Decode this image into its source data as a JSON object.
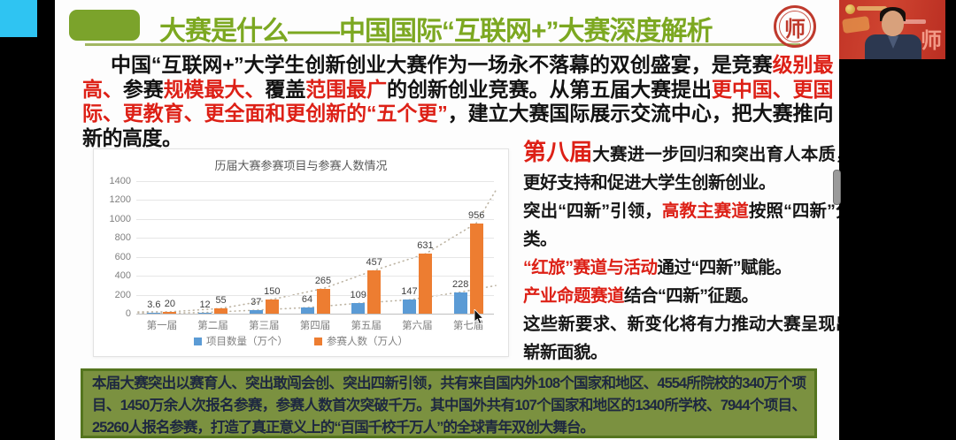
{
  "colors": {
    "title_green": "#7ca821",
    "bullet_green": "#7ba32b",
    "highlight_red": "#dd2016",
    "chart_blue": "#5B9BD5",
    "chart_orange": "#ED7D31",
    "bottom_box_green": "#7b9140",
    "bottom_box_border": "#55751f",
    "cyan_tile": "#2fc4f2"
  },
  "header": {
    "title": "大赛是什么——中国国际“互联网+”大赛深度解析",
    "seal_char": "师"
  },
  "intro_segments": [
    {
      "t": "中国“互联网+”大学生创新创业大赛作为一场永不落幕的双创盛宴，是竞赛",
      "red": false
    },
    {
      "t": "级别最高、",
      "red": true
    },
    {
      "t": "参赛",
      "red": false
    },
    {
      "t": "规模最大、",
      "red": true
    },
    {
      "t": "覆盖",
      "red": false
    },
    {
      "t": "范围最广",
      "red": true
    },
    {
      "t": "的创新创业竞赛。从第五届大赛提出",
      "red": false
    },
    {
      "t": "更中国、更国际、更教育、更全面和更创新的“五个更”",
      "red": true
    },
    {
      "t": "，建立大赛国际展示交流中心，把大赛推向新的高度。",
      "red": false
    }
  ],
  "chart_data": {
    "type": "bar",
    "title": "历届大赛参赛项目与参赛人数情况",
    "categories": [
      "第一届",
      "第二届",
      "第三届",
      "第四届",
      "第五届",
      "第六届",
      "第七届"
    ],
    "series": [
      {
        "name": "项目数量（万个）",
        "color": "#5B9BD5",
        "values": [
          3.6,
          12,
          37,
          64,
          109,
          147,
          228
        ]
      },
      {
        "name": "参赛人数（万人）",
        "color": "#ED7D31",
        "values": [
          20,
          55,
          150,
          265,
          457,
          631,
          956
        ]
      }
    ],
    "ylim": [
      0,
      1400
    ],
    "ytick_step": 200,
    "grid": true,
    "legend_position": "bottom",
    "trendlines": true
  },
  "right_panel": {
    "paragraphs": [
      [
        {
          "t": "第八届",
          "red": true,
          "big": true
        },
        {
          "t": "大赛进一步回归和突出育人本质，更好支持和促进大学生创新创业。",
          "red": false
        }
      ],
      [
        {
          "t": "突出“四新”引领，",
          "red": false
        },
        {
          "t": "高教主赛道",
          "red": true
        },
        {
          "t": "按照“四新”分类。",
          "red": false
        }
      ],
      [
        {
          "t": "“红旅”赛道与活动",
          "red": true
        },
        {
          "t": "通过“四新”赋能。",
          "red": false
        }
      ],
      [
        {
          "t": "产业命题赛道",
          "red": true
        },
        {
          "t": "结合“四新”征题。",
          "red": false
        }
      ],
      [
        {
          "t": "这些新要求、新变化将有力推动大赛呈现出崭新面貌。",
          "red": false
        }
      ]
    ]
  },
  "bottom_box": {
    "text": "本届大赛突出以赛育人、突出敢闯会创、突出四新引领，共有来自国内外108个国家和地区、4554所院校的340万个项目、1450万余人次报名参赛，参赛人数首次突破千万。其中国外共有107个国家和地区的1340所学校、7944个项目、25260人报名参赛，打造了真正意义上的“百国千校千万人”的全球青年双创大舞台。"
  },
  "video_overlay": {
    "backdrop_char": "师"
  }
}
